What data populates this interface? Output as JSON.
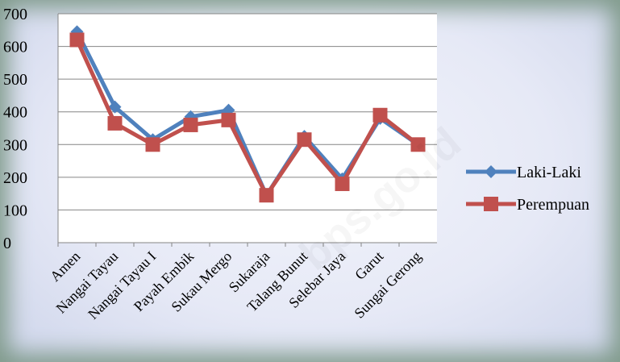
{
  "chart_data": {
    "type": "line",
    "categories": [
      "Amen",
      "Nangai Tayau",
      "Nangai Tayau I",
      "Payah Embik",
      "Sukau Mergo",
      "Sukaraja",
      "Talang Bunut",
      "Selebar Jaya",
      "Garut",
      "Sungai Gerong"
    ],
    "series": [
      {
        "name": "Laki-Laki",
        "color": "#4f81bd",
        "marker": "diamond",
        "values": [
          645,
          415,
          315,
          385,
          405,
          145,
          325,
          195,
          380,
          300
        ]
      },
      {
        "name": "Perempuan",
        "color": "#c0504d",
        "marker": "square",
        "values": [
          620,
          365,
          300,
          360,
          375,
          145,
          315,
          180,
          390,
          300
        ]
      }
    ],
    "ylim": [
      0,
      700
    ],
    "yticks": [
      0,
      100,
      200,
      300,
      400,
      500,
      600,
      700
    ],
    "grid": true,
    "legend": "right",
    "title": "",
    "xlabel": "",
    "ylabel": ""
  },
  "watermark": "bps.go.id"
}
